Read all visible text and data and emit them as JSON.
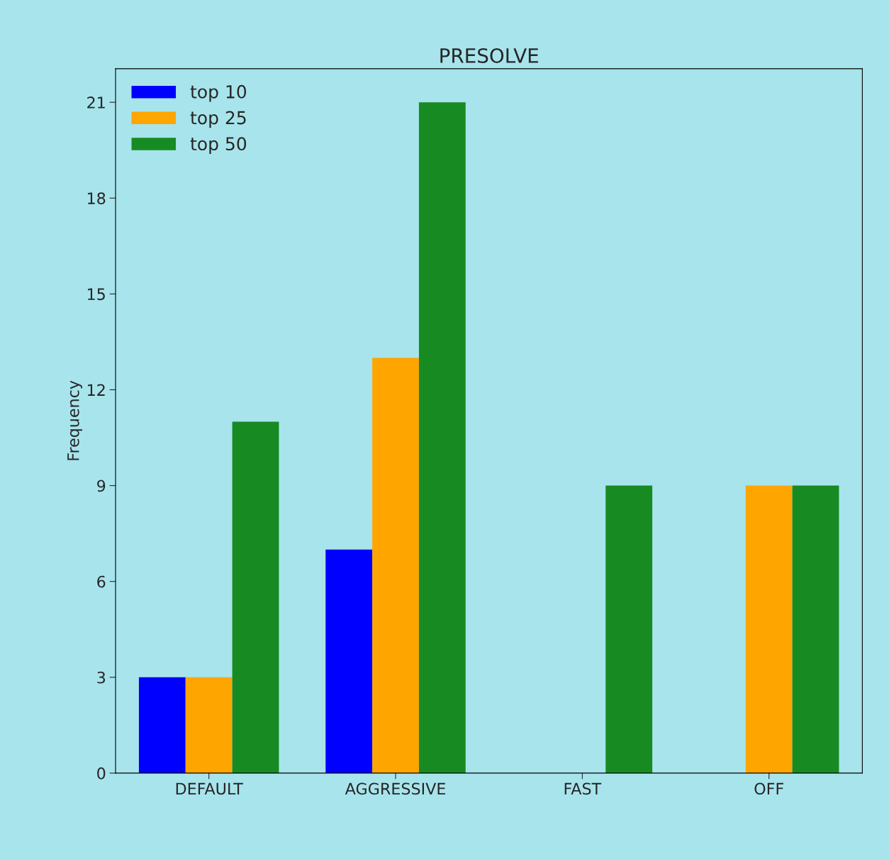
{
  "chart_data": {
    "type": "bar",
    "title": "PRESOLVE",
    "ylabel": "Frequency",
    "categories": [
      "DEFAULT",
      "AGGRESSIVE",
      "FAST",
      "OFF"
    ],
    "series": [
      {
        "name": "top 10",
        "color": "#0000ff",
        "values": [
          3,
          7,
          0,
          0
        ]
      },
      {
        "name": "top 25",
        "color": "#ffa500",
        "values": [
          3,
          13,
          0,
          9
        ]
      },
      {
        "name": "top 50",
        "color": "#178b22",
        "values": [
          11,
          21,
          9,
          9
        ]
      }
    ],
    "ylim": [
      0,
      22.05
    ],
    "yticks": [
      0,
      3,
      6,
      9,
      12,
      15,
      18,
      21
    ],
    "grid": false,
    "legend": "top left"
  }
}
